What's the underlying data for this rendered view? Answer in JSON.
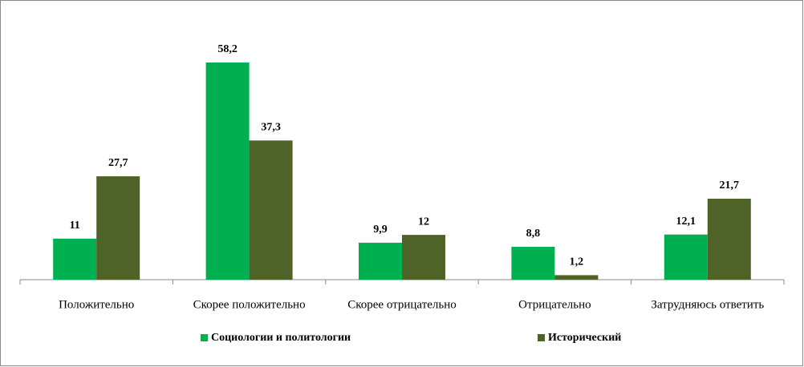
{
  "chart_data": {
    "type": "bar",
    "categories": [
      "Положительно",
      "Скорее положительно",
      "Скорее отрицательно",
      "Отрицательно",
      "Затрудняюсь ответить"
    ],
    "series": [
      {
        "name": "Социологии и политологии",
        "color": "#00b050",
        "values": [
          11,
          58.2,
          9.9,
          8.8,
          12.1
        ],
        "value_labels": [
          "11",
          "58,2",
          "9,9",
          "8,8",
          "12,1"
        ]
      },
      {
        "name": "Исторический",
        "color": "#4f6228",
        "values": [
          27.7,
          37.3,
          12,
          1.2,
          21.7
        ],
        "value_labels": [
          "27,7",
          "37,3",
          "12",
          "1,2",
          "21,7"
        ]
      }
    ]
  }
}
